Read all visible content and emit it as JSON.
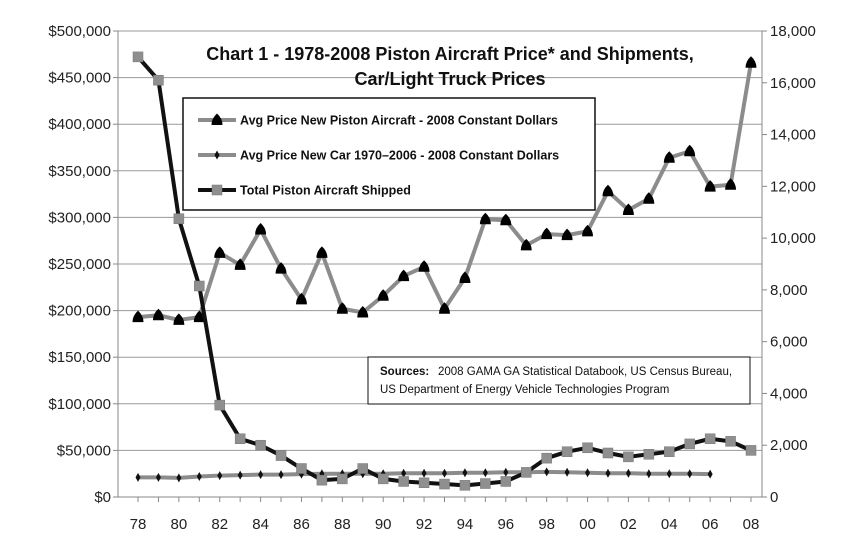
{
  "chart_data": {
    "type": "line",
    "title": "Chart 1 - 1978-2008 Piston Aircraft Price* and Shipments,",
    "subtitle": "Car/Light Truck Prices",
    "x": [
      "78",
      "79",
      "80",
      "81",
      "82",
      "83",
      "84",
      "85",
      "86",
      "87",
      "88",
      "89",
      "90",
      "91",
      "92",
      "93",
      "94",
      "95",
      "96",
      "97",
      "98",
      "99",
      "00",
      "01",
      "02",
      "03",
      "04",
      "05",
      "06",
      "07",
      "08"
    ],
    "x_tick_labels": [
      "78",
      "80",
      "82",
      "84",
      "86",
      "88",
      "90",
      "92",
      "94",
      "96",
      "98",
      "00",
      "02",
      "04",
      "06",
      "08"
    ],
    "y_left": {
      "ylim": [
        0,
        500000
      ],
      "tick_labels": [
        "$0",
        "$50,000",
        "$100,000",
        "$150,000",
        "$200,000",
        "$250,000",
        "$300,000",
        "$350,000",
        "$400,000",
        "$450,000",
        "$500,000"
      ]
    },
    "y_right": {
      "ylim": [
        0,
        18000
      ],
      "tick_labels": [
        "0",
        "2,000",
        "4,000",
        "6,000",
        "8,000",
        "10,000",
        "12,000",
        "14,000",
        "16,000",
        "18,000"
      ]
    },
    "series": [
      {
        "name": "Avg Price New Piston Aircraft - 2008 Constant Dollars",
        "axis": "left",
        "color": "#8c8c8c",
        "marker": "bullet",
        "values": [
          193000,
          195000,
          190000,
          193000,
          262000,
          249000,
          287000,
          245000,
          212000,
          262000,
          202000,
          198000,
          216000,
          237000,
          247000,
          202000,
          235000,
          298000,
          297000,
          270000,
          282000,
          281000,
          285000,
          328000,
          308000,
          320000,
          364000,
          371000,
          333000,
          335000,
          466000
        ]
      },
      {
        "name": "Avg Price New Car 1970–2006 - 2008 Constant Dollars",
        "axis": "left",
        "color": "#8c8c8c",
        "marker": "diamond",
        "values": [
          21000,
          21000,
          20500,
          22000,
          23000,
          23500,
          24000,
          24000,
          24500,
          25000,
          25000,
          25000,
          25000,
          25500,
          25500,
          25500,
          26000,
          26000,
          26500,
          26500,
          27000,
          26500,
          26000,
          25500,
          25500,
          25000,
          25000,
          25000,
          24500,
          null,
          null
        ]
      },
      {
        "name": "Total Piston Aircraft Shipped",
        "axis": "right",
        "color": "#111111",
        "marker": "square",
        "values": [
          17000,
          16100,
          10750,
          8150,
          3550,
          2250,
          2000,
          1600,
          1100,
          650,
          700,
          1100,
          700,
          600,
          550,
          500,
          450,
          520,
          600,
          950,
          1500,
          1750,
          1900,
          1700,
          1550,
          1650,
          1750,
          2050,
          2250,
          2150,
          1800
        ]
      }
    ],
    "legend": {
      "placement": "top-center"
    },
    "sources": {
      "label": "Sources:",
      "line1": "2008 GAMA GA Statistical Databook, US Census Bureau,",
      "line2": "US Department of Energy Vehicle Technologies Program"
    }
  }
}
